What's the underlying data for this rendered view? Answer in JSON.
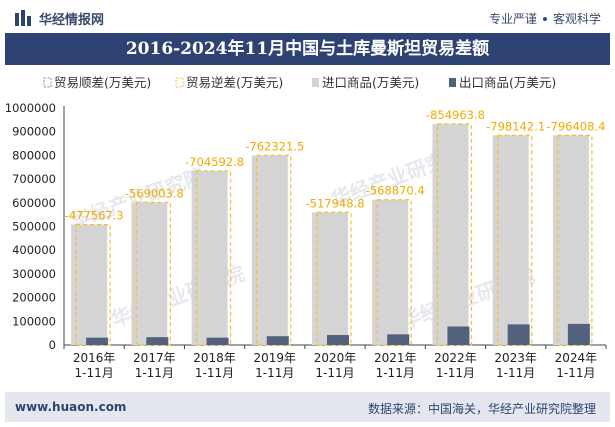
{
  "header": {
    "brand": "华经情报网",
    "slogan_left": "专业严谨",
    "slogan_right": "客观科学",
    "title": "2016-2024年11月中国与土库曼斯坦贸易差额"
  },
  "footer": {
    "site": "www.huaon.com",
    "source": "数据来源：中国海关，华经产业研究院整理"
  },
  "watermark": "华经产业研究院",
  "colors": {
    "import": "#d4d4d4",
    "export": "#52617e",
    "deficit_stroke": "#f2c12e",
    "surplus_stroke": "#7f8fb0",
    "title_bg": "#2e4374",
    "label": "#f2a900"
  },
  "chart_data": {
    "type": "bar",
    "categories": [
      "2016年\n1-11月",
      "2017年\n1-11月",
      "2018年\n1-11月",
      "2019年\n1-11月",
      "2020年\n1-11月",
      "2021年\n1-11月",
      "2022年\n1-11月",
      "2023年\n1-11月",
      "2024年\n1-11月"
    ],
    "series": [
      {
        "name": "贸易顺差(万美元)",
        "values": [
          null,
          null,
          null,
          null,
          null,
          null,
          null,
          null,
          null
        ]
      },
      {
        "name": "贸易逆差(万美元)",
        "values": [
          -477567.3,
          -569003.8,
          -704592.8,
          -762321.5,
          -517948.8,
          -568870.4,
          -854963.8,
          -798142.1,
          -796408.4
        ]
      },
      {
        "name": "进口商品(万美元)",
        "values": [
          508000,
          602000,
          735000,
          800000,
          560000,
          613000,
          933000,
          885000,
          885000
        ]
      },
      {
        "name": "出口商品(万美元)",
        "values": [
          31000,
          33000,
          31000,
          37000,
          42000,
          45000,
          78000,
          87000,
          89000
        ]
      }
    ],
    "data_labels": [
      "-477567.3",
      "-569003.8",
      "-704592.8",
      "-762321.5",
      "-517948.8",
      "-568870.4",
      "-854963.8",
      "-798142.1",
      "-796408.4"
    ],
    "title": "2016-2024年11月中国与土库曼斯坦贸易差额",
    "xlabel": "",
    "ylabel": "",
    "ylim": [
      0,
      1000000
    ],
    "yticks": [
      "0",
      "100000",
      "200000",
      "300000",
      "400000",
      "500000",
      "600000",
      "700000",
      "800000",
      "900000",
      "1000000"
    ],
    "legend_position": "top"
  }
}
